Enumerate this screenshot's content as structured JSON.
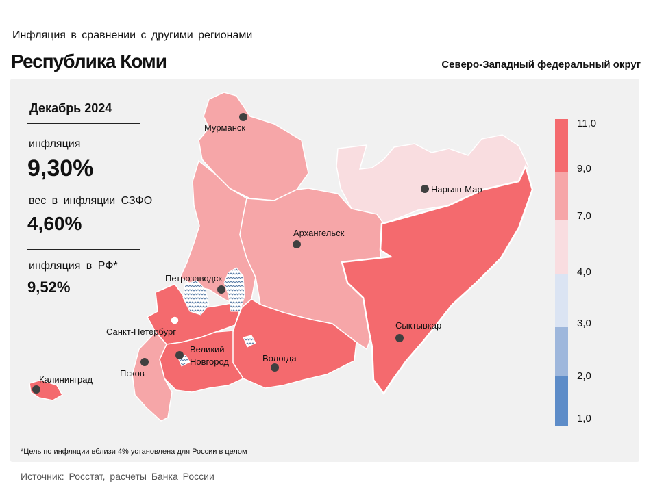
{
  "header": {
    "subtitle": "Инфляция в сравнении с другими регионами",
    "title": "Республика Коми",
    "district": "Северо-Западный федеральный округ"
  },
  "panel": {
    "period": "Декабрь 2024",
    "inflation_label": "инфляция",
    "inflation_value": "9,30%",
    "weight_label": "вес в инфляции СЗФО",
    "weight_value": "4,60%",
    "rf_label": "инфляция в РФ*",
    "rf_value": "9,52%"
  },
  "legend": {
    "ticks": [
      "11,0",
      "9,0",
      "7,0",
      "4,0",
      "3,0",
      "2,0",
      "1,0"
    ],
    "colors": [
      "#f46a6e",
      "#f6a6a8",
      "#f9dde0",
      "#dbe4f3",
      "#9eb7dc",
      "#5d8cc8"
    ]
  },
  "map": {
    "selected_region": "Республика Коми",
    "cities": {
      "murmansk": "Мурманск",
      "naryan_mar": "Нарьян-Мар",
      "arkhangelsk": "Архангельск",
      "petrozavodsk": "Петрозаводск",
      "spb": "Санкт-Петербург",
      "syktyvkar": "Сыктывкар",
      "pskov": "Псков",
      "novgorod_1": "Великий",
      "novgorod_2": "Новгород",
      "vologda": "Вологда",
      "kaliningrad": "Калининград"
    }
  },
  "footnote": "*Цель по инфляции вблизи 4% установлена для России в целом",
  "source": "Источник: Росстат, расчеты Банка России"
}
